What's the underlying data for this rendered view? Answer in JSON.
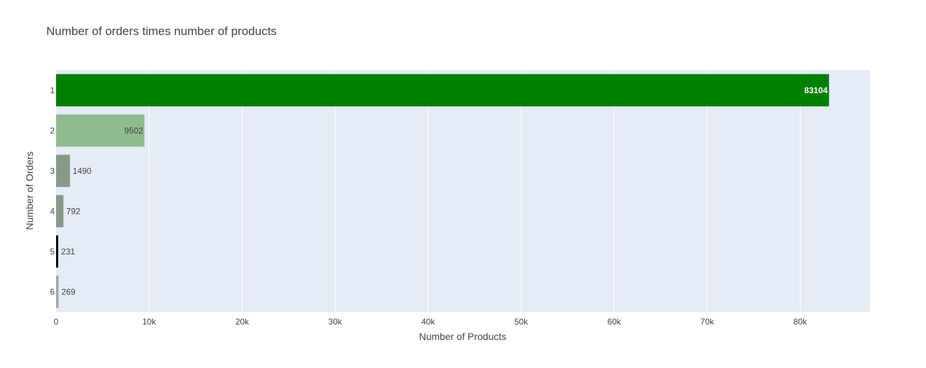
{
  "chart_data": {
    "type": "bar",
    "orientation": "horizontal",
    "title": "Number of orders times number of products",
    "xlabel": "Number of Products",
    "ylabel": "Number of Orders",
    "xlim": [
      0,
      87500
    ],
    "x_ticks": [
      0,
      10000,
      20000,
      30000,
      40000,
      50000,
      60000,
      70000,
      80000
    ],
    "x_tick_labels": [
      "0",
      "10k",
      "20k",
      "30k",
      "40k",
      "50k",
      "60k",
      "70k",
      "80k"
    ],
    "categories": [
      "1",
      "2",
      "3",
      "4",
      "5",
      "6"
    ],
    "values": [
      83104,
      9502,
      1490,
      792,
      231,
      269
    ],
    "data_labels": [
      "83104",
      "9502",
      "1490",
      "792",
      "231",
      "269"
    ],
    "bar_colors": [
      "#008000",
      "#8fbc8f",
      "#879a87",
      "#879a87",
      "#000000",
      "#a3a8a3"
    ],
    "label_colors": [
      "#ffffff",
      "#444444",
      "#444444",
      "#444444",
      "#444444",
      "#444444"
    ],
    "label_positions": [
      "inside",
      "inside",
      "outside",
      "outside",
      "outside",
      "outside"
    ],
    "plot_background": "#e5ecf6",
    "grid": true,
    "legend": "none"
  }
}
